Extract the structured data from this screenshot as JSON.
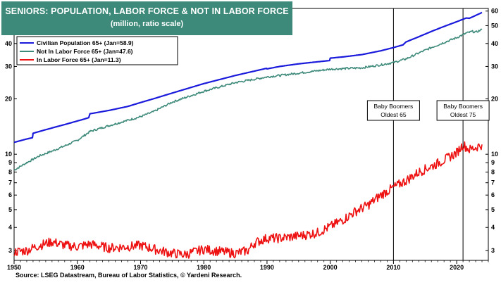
{
  "chart_data": {
    "type": "line",
    "title": "SENIORS: POPULATION, LABOR FORCE & NOT IN LABOR FORCE",
    "subtitle": "(million, ratio scale)",
    "x_ticks": [
      "1950",
      "1960",
      "1970",
      "1980",
      "1990",
      "2000",
      "2010",
      "2020"
    ],
    "y_ticks": [
      "3",
      "4",
      "5",
      "6",
      "7",
      "8",
      "9",
      "10",
      "20",
      "30",
      "40",
      "50",
      "60"
    ],
    "y_scale": "log",
    "xlim": [
      1950,
      2025
    ],
    "ylim": [
      2.65,
      62
    ],
    "grid": false,
    "legend_position": "top-left",
    "series": [
      {
        "name": "Civilian Population 65+ (Jan=58.9)",
        "color": "#1a1adc",
        "points": [
          [
            1950,
            11.6
          ],
          [
            1952,
            12.1
          ],
          [
            1952.9,
            12.3
          ],
          [
            1953,
            13.0
          ],
          [
            1955,
            13.6
          ],
          [
            1958,
            14.5
          ],
          [
            1961,
            15.5
          ],
          [
            1961.8,
            15.8
          ],
          [
            1962,
            16.6
          ],
          [
            1965,
            17.3
          ],
          [
            1968,
            18.2
          ],
          [
            1970,
            19.1
          ],
          [
            1972,
            20.0
          ],
          [
            1975,
            21.5
          ],
          [
            1980,
            24.2
          ],
          [
            1985,
            26.8
          ],
          [
            1989.9,
            29.3
          ],
          [
            1990,
            29.1
          ],
          [
            1992,
            30.0
          ],
          [
            1995,
            31.0
          ],
          [
            1998,
            31.8
          ],
          [
            1999.9,
            32.3
          ],
          [
            2000,
            33.3
          ],
          [
            2002,
            33.8
          ],
          [
            2005,
            34.8
          ],
          [
            2008,
            36.5
          ],
          [
            2010,
            38.0
          ],
          [
            2011.5,
            39.3
          ],
          [
            2012,
            40.8
          ],
          [
            2014,
            43.5
          ],
          [
            2016,
            46.5
          ],
          [
            2018,
            49.5
          ],
          [
            2020,
            52.5
          ],
          [
            2021.5,
            55.0
          ],
          [
            2022,
            54.8
          ],
          [
            2023,
            56.8
          ],
          [
            2024,
            58.9
          ]
        ]
      },
      {
        "name": "Not In Labor Force 65+ (Jan=47.6)",
        "color": "#3d8a7a",
        "points": [
          [
            1950,
            8.2
          ],
          [
            1952,
            9.0
          ],
          [
            1954,
            9.8
          ],
          [
            1956,
            10.4
          ],
          [
            1958,
            11.1
          ],
          [
            1960,
            11.9
          ],
          [
            1962,
            13.3
          ],
          [
            1965,
            14.3
          ],
          [
            1968,
            15.3
          ],
          [
            1970,
            16.0
          ],
          [
            1972,
            17.0
          ],
          [
            1975,
            19.2
          ],
          [
            1980,
            22.0
          ],
          [
            1985,
            24.5
          ],
          [
            1990,
            26.3
          ],
          [
            1995,
            27.6
          ],
          [
            2000,
            29.0
          ],
          [
            2005,
            29.5
          ],
          [
            2008,
            30.6
          ],
          [
            2010,
            31.5
          ],
          [
            2012,
            33.0
          ],
          [
            2014,
            35.5
          ],
          [
            2016,
            38.0
          ],
          [
            2018,
            40.5
          ],
          [
            2020,
            43.0
          ],
          [
            2021.5,
            45.5
          ],
          [
            2022.5,
            46.5
          ],
          [
            2023,
            46.0
          ],
          [
            2024,
            47.6
          ]
        ]
      },
      {
        "name": "In Labor Force 65+ (Jan=11.3)",
        "color": "#ee1111",
        "points": [
          [
            1950,
            2.95
          ],
          [
            1952,
            3.0
          ],
          [
            1954,
            3.2
          ],
          [
            1956,
            3.35
          ],
          [
            1958,
            3.2
          ],
          [
            1960,
            3.15
          ],
          [
            1962,
            3.25
          ],
          [
            1965,
            3.1
          ],
          [
            1968,
            3.15
          ],
          [
            1970,
            3.2
          ],
          [
            1973,
            3.0
          ],
          [
            1975,
            2.9
          ],
          [
            1977,
            2.85
          ],
          [
            1980,
            3.05
          ],
          [
            1983,
            2.95
          ],
          [
            1985,
            2.9
          ],
          [
            1987,
            3.0
          ],
          [
            1988,
            3.3
          ],
          [
            1990,
            3.5
          ],
          [
            1992,
            3.5
          ],
          [
            1995,
            3.6
          ],
          [
            1998,
            3.75
          ],
          [
            2000,
            4.05
          ],
          [
            2002,
            4.4
          ],
          [
            2004,
            4.9
          ],
          [
            2006,
            5.3
          ],
          [
            2008,
            6.0
          ],
          [
            2010,
            6.6
          ],
          [
            2012,
            7.2
          ],
          [
            2014,
            8.0
          ],
          [
            2016,
            8.6
          ],
          [
            2018,
            9.3
          ],
          [
            2020,
            10.2
          ],
          [
            2021,
            11.3
          ],
          [
            2022,
            10.6
          ],
          [
            2023,
            10.9
          ],
          [
            2024,
            11.3
          ]
        ]
      }
    ],
    "annotations": [
      {
        "x": 2010,
        "lines": [
          "Baby Boomers",
          "Oldest 65"
        ]
      },
      {
        "x": 2021,
        "lines": [
          "Baby Boomers",
          "Oldest 75"
        ]
      }
    ],
    "source": "Source: LSEG Datastream, Bureau of Labor Statistics, © Yardeni Research."
  }
}
